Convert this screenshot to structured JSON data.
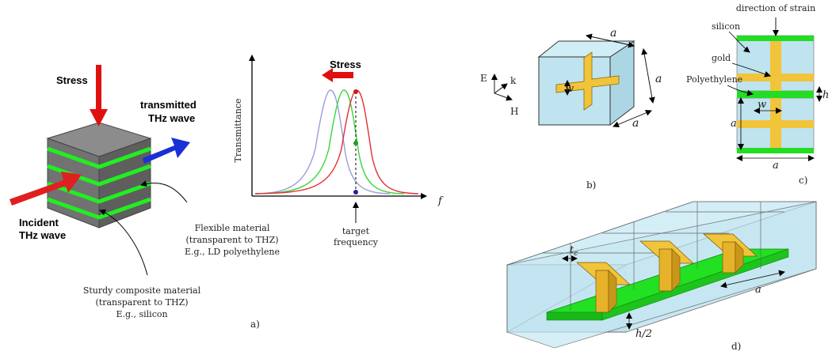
{
  "colors": {
    "cube_top": "#8a8a8a",
    "cube_front": "#6e6e6e",
    "cube_side": "#5c5c5c",
    "layer": "#22ee22",
    "stress_arrow": "#e01010",
    "incident_arrow": "#e02020",
    "transmitted_arrow": "#1a2fd6",
    "silicon": "#bfe3ef",
    "gold": "#f2c43a",
    "polyethylene": "#22dd22",
    "curve_red": "#e23030",
    "curve_green": "#3ad43a",
    "curve_blue": "#9b9bdf"
  },
  "panel_a": {
    "stress_label": "Stress",
    "transmitted_label_1": "transmitted",
    "transmitted_label_2": "THz wave",
    "incident_label_1": "Incident",
    "incident_label_2": "THz wave",
    "flexible_1": "Flexible material",
    "flexible_2": "(transparent to THZ)",
    "flexible_3": "E.g., LD polyethylene",
    "sturdy_1": "Sturdy composite material",
    "sturdy_2": "(transparent to THZ)",
    "sturdy_3": "E.g., silicon",
    "caption": "a)",
    "plot_stress_label": "Stress",
    "plot_ylabel": "Transmittance",
    "plot_xlabel": "f",
    "target_1": "target",
    "target_2": "frequency"
  },
  "panel_b": {
    "caption": "b)",
    "label_a_top": "a",
    "label_a_right": "a",
    "label_a_bottom": "a",
    "label_w": "w",
    "axis_e": "E",
    "axis_k": "k",
    "axis_h": "H"
  },
  "panel_c": {
    "caption": "c)",
    "direction_label": "direction of strain",
    "silicon_label": "silicon",
    "gold_label": "gold",
    "polyethylene_label": "Polyethylene",
    "label_w": "w",
    "label_h": "h",
    "label_a_left": "a",
    "label_a_bottom": "a"
  },
  "panel_d": {
    "caption": "d)",
    "label_tc": "t",
    "label_tc_sub": "c",
    "label_a": "a",
    "label_h2": "h/2"
  }
}
